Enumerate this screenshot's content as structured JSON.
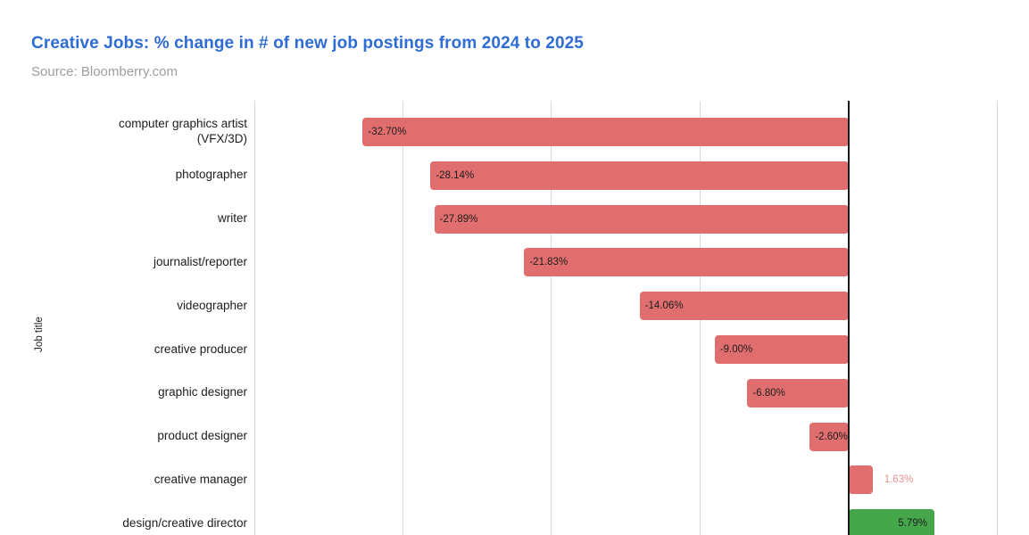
{
  "header": {
    "title": "Creative Jobs: % change in # of new job postings from 2024 to 2025",
    "subtitle": "Source: Bloomberry.com"
  },
  "colors": {
    "title": "#2f6cd4",
    "subtitle": "#9e9e9e",
    "text": "#1d1d1d",
    "gridline": "#d9d9d9",
    "zero_line": "#1a1a1a",
    "negative_bar": "#e06e6e",
    "positive_highlight_bar": "#45a749",
    "outside_label": "#e8908f"
  },
  "chart_data": {
    "type": "bar",
    "orientation": "horizontal",
    "title": "Creative Jobs: % change in # of new job postings from 2024 to 2025",
    "subtitle": "Source: Bloomberry.com",
    "xlabel": "",
    "ylabel": "Job title",
    "grid": true,
    "xlim": [
      -40,
      10
    ],
    "gridline_ticks": [
      -40,
      -30,
      -20,
      -10,
      0,
      10
    ],
    "categories": [
      "computer graphics artist (VFX/3D)",
      "photographer",
      "writer",
      "journalist/reporter",
      "videographer",
      "creative producer",
      "graphic designer",
      "product designer",
      "creative manager",
      "design/creative director"
    ],
    "values": [
      -32.7,
      -28.14,
      -27.89,
      -21.83,
      -14.06,
      -9.0,
      -6.8,
      -2.6,
      1.63,
      5.79
    ],
    "data_labels": [
      "-32.70%",
      "-28.14%",
      "-27.89%",
      "-21.83%",
      "-14.06%",
      "-9.00%",
      "-6.80%",
      "-2.60%",
      "1.63%",
      "5.79%"
    ],
    "bar_colors": [
      "#e06e6e",
      "#e06e6e",
      "#e06e6e",
      "#e06e6e",
      "#e06e6e",
      "#e06e6e",
      "#e06e6e",
      "#e06e6e",
      "#e06e6e",
      "#45a749"
    ],
    "label_placements": [
      "inside-left",
      "inside-left",
      "inside-left",
      "inside-left",
      "inside-left",
      "inside-left",
      "inside-left",
      "inside-left",
      "outside-right",
      "inside-right"
    ],
    "label_colors": [
      "#1d1d1d",
      "#1d1d1d",
      "#1d1d1d",
      "#1d1d1d",
      "#1d1d1d",
      "#1d1d1d",
      "#1d1d1d",
      "#1d1d1d",
      "#e8908f",
      "#1d1d1d"
    ]
  }
}
